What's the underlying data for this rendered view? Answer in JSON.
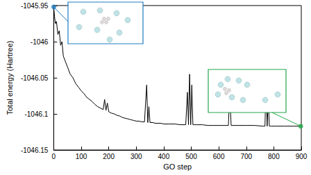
{
  "chart_data": {
    "type": "line",
    "xlabel": "GO step",
    "ylabel": "Total energy (Hartree)",
    "xlim": [
      0,
      900
    ],
    "xticks": [
      0,
      100,
      200,
      300,
      400,
      500,
      600,
      700,
      800,
      900
    ],
    "ylim": [
      -1046.15,
      -1045.95
    ],
    "yticks": [
      -1046.15,
      -1046.1,
      -1046.05,
      -1046,
      -1045.95
    ],
    "grid": false,
    "series": [
      {
        "type": "line",
        "color": "#000000",
        "marker": "none",
        "line_style": "solid",
        "x": [
          0,
          3,
          6,
          10,
          15,
          20,
          25,
          30,
          35,
          40,
          50,
          60,
          70,
          80,
          90,
          100,
          110,
          120,
          130,
          140,
          150,
          160,
          170,
          180,
          185,
          190,
          195,
          200,
          210,
          220,
          230,
          240,
          250,
          260,
          270,
          280,
          290,
          300,
          310,
          320,
          330,
          338,
          342,
          346,
          350,
          360,
          370,
          380,
          390,
          400,
          420,
          440,
          460,
          480,
          486,
          490,
          494,
          498,
          502,
          506,
          510,
          520,
          540,
          560,
          580,
          600,
          620,
          635,
          640,
          645,
          650,
          670,
          700,
          730,
          760,
          768,
          772,
          776,
          780,
          784,
          790,
          810,
          840,
          870,
          898
        ],
        "values": [
          -1045.952,
          -1045.965,
          -1045.975,
          -1045.972,
          -1045.99,
          -1045.985,
          -1046.005,
          -1046.0,
          -1046.02,
          -1046.025,
          -1046.035,
          -1046.045,
          -1046.05,
          -1046.058,
          -1046.063,
          -1046.068,
          -1046.072,
          -1046.077,
          -1046.08,
          -1046.083,
          -1046.087,
          -1046.09,
          -1046.092,
          -1046.094,
          -1046.08,
          -1046.095,
          -1046.085,
          -1046.097,
          -1046.099,
          -1046.1,
          -1046.102,
          -1046.103,
          -1046.105,
          -1046.106,
          -1046.107,
          -1046.108,
          -1046.109,
          -1046.11,
          -1046.11,
          -1046.111,
          -1046.111,
          -1046.06,
          -1046.112,
          -1046.09,
          -1046.112,
          -1046.112,
          -1046.113,
          -1046.113,
          -1046.113,
          -1046.114,
          -1046.114,
          -1046.114,
          -1046.115,
          -1046.115,
          -1046.07,
          -1046.115,
          -1046.045,
          -1046.115,
          -1046.06,
          -1046.115,
          -1046.115,
          -1046.115,
          -1046.115,
          -1046.116,
          -1046.116,
          -1046.116,
          -1046.116,
          -1046.116,
          -1046.07,
          -1046.116,
          -1046.116,
          -1046.116,
          -1046.116,
          -1046.116,
          -1046.117,
          -1046.117,
          -1046.055,
          -1046.117,
          -1046.08,
          -1046.117,
          -1046.117,
          -1046.117,
          -1046.117,
          -1046.117,
          -1046.117
        ]
      },
      {
        "type": "scatter",
        "marker": "circle",
        "colors": [
          "#1f7cc4",
          "#22a84a"
        ],
        "x": [
          0,
          898
        ],
        "values": [
          -1045.952,
          -1046.117
        ]
      }
    ]
  }
}
